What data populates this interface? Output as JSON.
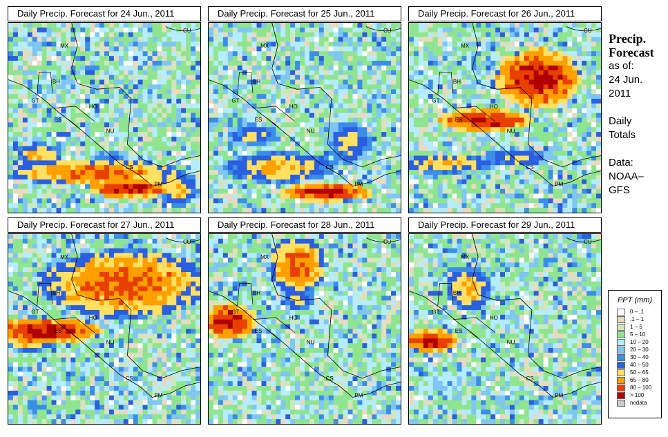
{
  "panels": [
    {
      "title": "Daily Precip. Forecast for  24 Jun., 2011",
      "heavy": [
        {
          "c": 0.45,
          "r": 0.22,
          "w": 0.45,
          "h": 0.07,
          "lvl": 10
        },
        {
          "c": 0.62,
          "r": 0.14,
          "w": 0.22,
          "h": 0.05,
          "lvl": 11
        },
        {
          "c": 0.87,
          "r": 0.14,
          "w": 0.1,
          "h": 0.1,
          "lvl": 9
        },
        {
          "c": 0.15,
          "r": 0.32,
          "w": 0.12,
          "h": 0.06,
          "lvl": 9
        },
        {
          "c": 0.52,
          "r": 0.3,
          "w": 0.12,
          "h": 0.05,
          "lvl": 7
        }
      ]
    },
    {
      "title": "Daily Precip. Forecast for  25 Jun., 2011",
      "heavy": [
        {
          "c": 0.35,
          "r": 0.25,
          "w": 0.3,
          "h": 0.08,
          "lvl": 9
        },
        {
          "c": 0.6,
          "r": 0.12,
          "w": 0.25,
          "h": 0.05,
          "lvl": 11
        },
        {
          "c": 0.72,
          "r": 0.38,
          "w": 0.12,
          "h": 0.12,
          "lvl": 8
        },
        {
          "c": 0.22,
          "r": 0.42,
          "w": 0.15,
          "h": 0.06,
          "lvl": 8
        }
      ]
    },
    {
      "title": "Daily Precip. Forecast for  26 Jun., 2011",
      "heavy": [
        {
          "c": 0.66,
          "r": 0.72,
          "w": 0.22,
          "h": 0.16,
          "lvl": 11
        },
        {
          "c": 0.38,
          "r": 0.5,
          "w": 0.25,
          "h": 0.06,
          "lvl": 11
        },
        {
          "c": 0.18,
          "r": 0.27,
          "w": 0.25,
          "h": 0.05,
          "lvl": 9
        },
        {
          "c": 0.55,
          "r": 0.3,
          "w": 0.18,
          "h": 0.05,
          "lvl": 8
        }
      ]
    },
    {
      "title": "Daily Precip. Forecast for  27 Jun., 2011",
      "heavy": [
        {
          "c": 0.6,
          "r": 0.75,
          "w": 0.45,
          "h": 0.18,
          "lvl": 10
        },
        {
          "c": 0.18,
          "r": 0.5,
          "w": 0.3,
          "h": 0.07,
          "lvl": 11
        },
        {
          "c": 0.1,
          "r": 0.45,
          "w": 0.15,
          "h": 0.06,
          "lvl": 9
        }
      ]
    },
    {
      "title": "Daily Precip. Forecast for  28 Jun., 2011",
      "heavy": [
        {
          "c": 0.45,
          "r": 0.85,
          "w": 0.15,
          "h": 0.15,
          "lvl": 10
        },
        {
          "c": 0.1,
          "r": 0.55,
          "w": 0.15,
          "h": 0.1,
          "lvl": 11
        },
        {
          "c": 0.45,
          "r": 0.68,
          "w": 0.1,
          "h": 0.08,
          "lvl": 8
        }
      ]
    },
    {
      "title": "Daily Precip. Forecast for  29 Jun., 2011",
      "heavy": [
        {
          "c": 0.1,
          "r": 0.45,
          "w": 0.15,
          "h": 0.06,
          "lvl": 11
        },
        {
          "c": 0.3,
          "r": 0.72,
          "w": 0.12,
          "h": 0.12,
          "lvl": 9
        },
        {
          "c": 0.15,
          "r": 0.22,
          "w": 0.12,
          "h": 0.1,
          "lvl": 5
        }
      ]
    }
  ],
  "map_labels": [
    "MX",
    "BH",
    "GT",
    "HO",
    "ES",
    "NU",
    "CS",
    "PM",
    "CU"
  ],
  "side": {
    "title_line1": "Precip.",
    "title_line2": "Forecast",
    "asof": "as of:",
    "date1": "24 Jun.",
    "date2": "2011",
    "totals1": "Daily",
    "totals2": "Totals",
    "data1": "Data:",
    "data2": "NOAA–",
    "data3": "GFS"
  },
  "legend": {
    "title": "PPT (mm)",
    "items": [
      {
        "label": "0 – .1",
        "color": "#ffffff"
      },
      {
        "label": ".1 – 1",
        "color": "#e8d9bf"
      },
      {
        "label": "1 – 5",
        "color": "#cfe7bd"
      },
      {
        "label": "5 – 10",
        "color": "#8fe58f"
      },
      {
        "label": "10 – 20",
        "color": "#b5ecff"
      },
      {
        "label": "20 – 30",
        "color": "#7fc6f2"
      },
      {
        "label": "30 – 40",
        "color": "#3b8ee8"
      },
      {
        "label": "40 – 50",
        "color": "#2a5fe0"
      },
      {
        "label": "50 – 65",
        "color": "#ffe060"
      },
      {
        "label": "65 – 80",
        "color": "#ff9f00"
      },
      {
        "label": "80 – 100",
        "color": "#e84000"
      },
      {
        "label": "> 100",
        "color": "#b00000"
      },
      {
        "label": "nodata",
        "color": "#c8c8c8"
      }
    ]
  }
}
